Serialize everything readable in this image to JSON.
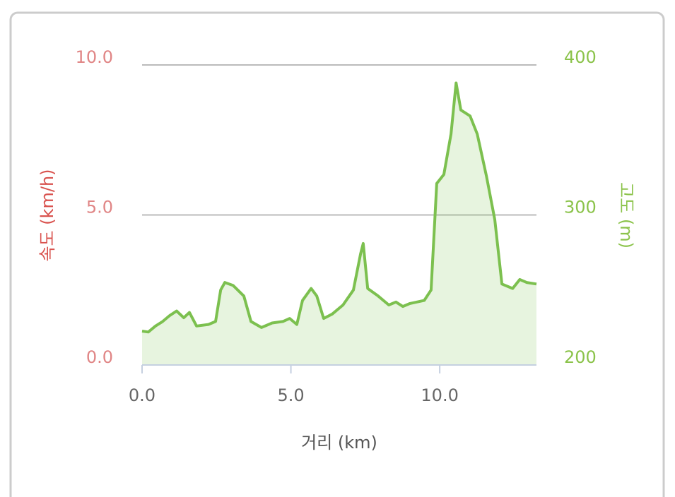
{
  "chart_data": {
    "type": "area",
    "x_label": "거리 (km)",
    "y_label": "속도 (km/h)",
    "y2_label": "고도 (m)",
    "xlim": [
      0,
      13.25
    ],
    "xticks": [
      {
        "value": 0,
        "label": "0.0"
      },
      {
        "value": 5,
        "label": "5.0"
      },
      {
        "value": 10,
        "label": "10.0"
      }
    ],
    "ylim": [
      0,
      10
    ],
    "yticks": [
      {
        "value": 0,
        "label": "0.0"
      },
      {
        "value": 5,
        "label": "5.0"
      },
      {
        "value": 10,
        "label": "10.0"
      }
    ],
    "y2lim": [
      200,
      400
    ],
    "y2ticks": [
      200,
      300,
      400
    ],
    "grid": true,
    "series": [
      {
        "axis": "y2",
        "color": "#7cc04f",
        "x": [
          0,
          0.21,
          0.45,
          0.69,
          0.93,
          1.16,
          1.4,
          1.59,
          1.83,
          2.23,
          2.47,
          2.64,
          2.78,
          3.06,
          3.42,
          3.66,
          4.01,
          4.37,
          4.73,
          4.96,
          5.2,
          5.39,
          5.68,
          5.87,
          6.1,
          6.39,
          6.75,
          7.1,
          7.34,
          7.43,
          7.58,
          7.93,
          8.29,
          8.53,
          8.76,
          9.0,
          9.48,
          9.71,
          9.9,
          10.14,
          10.38,
          10.55,
          10.71,
          11.02,
          11.26,
          11.57,
          11.85,
          12.09,
          12.45,
          12.69,
          12.92,
          13.25
        ],
        "values": [
          222.6,
          222,
          226,
          229,
          233,
          236,
          231.5,
          235,
          226,
          227,
          229,
          250,
          255,
          253,
          246,
          229,
          225,
          228,
          229,
          231,
          227,
          243,
          251,
          246,
          231,
          234,
          240,
          250,
          274,
          281,
          251,
          246,
          240,
          242,
          239,
          241,
          243,
          250,
          321,
          327,
          354,
          388,
          370,
          366,
          354,
          326,
          297,
          254,
          251,
          257,
          255,
          254
        ]
      }
    ]
  }
}
